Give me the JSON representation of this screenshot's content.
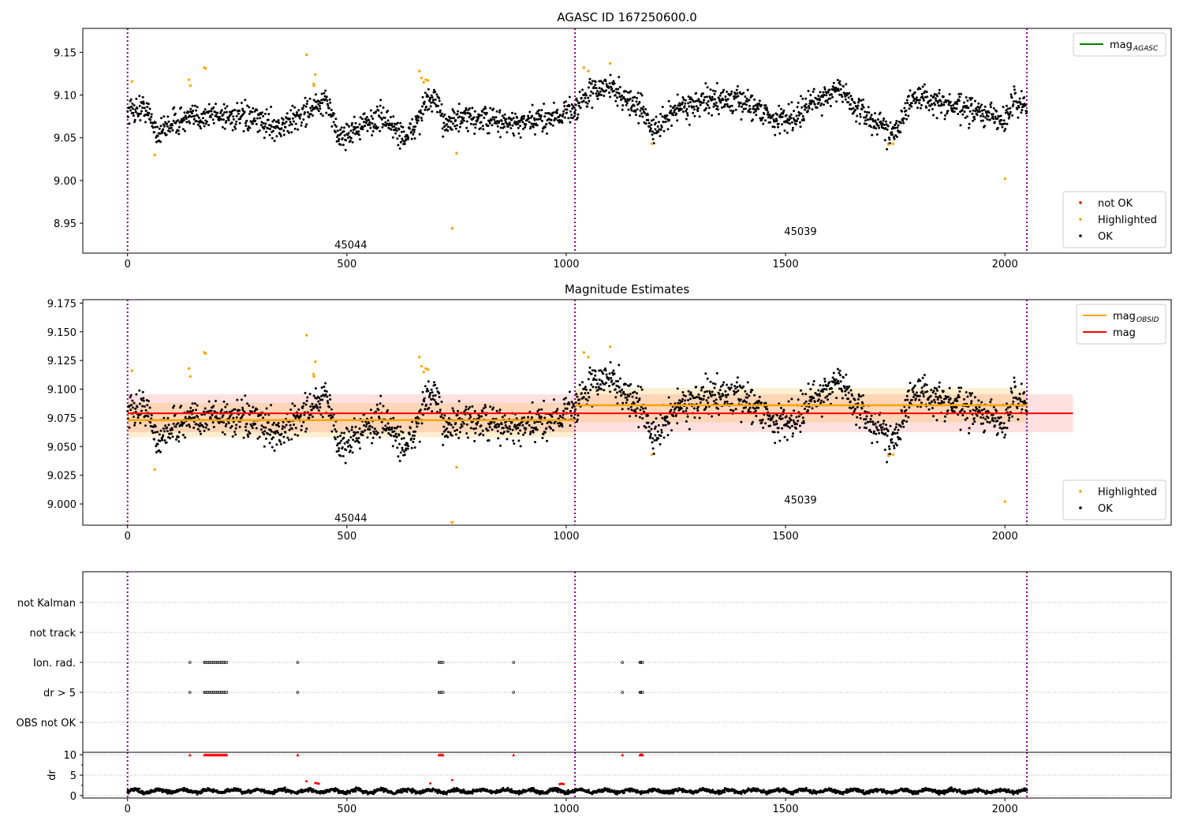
{
  "chart_data": [
    {
      "type": "scatter",
      "title": "AGASC ID 167250600.0",
      "xlim": [
        -102,
        2379
      ],
      "ylim": [
        8.915,
        9.178
      ],
      "xticks": [
        "0",
        "500",
        "1000",
        "1500",
        "2000"
      ],
      "yticks": [
        "8.95",
        "9.00",
        "9.05",
        "9.10",
        "9.15"
      ],
      "legend_upper": {
        "position": "upper-right",
        "entries": [
          {
            "label": "mag",
            "sub": "AGASC",
            "color": "#008000"
          }
        ]
      },
      "legend_lower": {
        "position": "lower-right",
        "entries": [
          {
            "label": "not OK",
            "color": "#ff0000"
          },
          {
            "label": "Highlighted",
            "color": "#ffa500"
          },
          {
            "label": "OK",
            "color": "#000000"
          }
        ]
      },
      "obsid_labels": [
        {
          "text": "45044",
          "x": 509,
          "y": 8.925
        },
        {
          "text": "45039",
          "x": 1534,
          "y": 8.941
        }
      ],
      "obsid_boundaries": [
        0,
        1020,
        2050
      ]
    },
    {
      "type": "scatter",
      "title": "Magnitude Estimates",
      "xlim": [
        -102,
        2379
      ],
      "ylim": [
        8.9815,
        9.178
      ],
      "xticks": [
        "0",
        "500",
        "1000",
        "1500",
        "2000"
      ],
      "yticks": [
        "9.000",
        "9.025",
        "9.050",
        "9.075",
        "9.100",
        "9.125",
        "9.150",
        "9.175"
      ],
      "legend_upper": {
        "position": "upper-right",
        "entries": [
          {
            "label": "mag",
            "sub": "OBSID",
            "color": "#ffa500"
          },
          {
            "label": "mag",
            "color": "#ff0000"
          }
        ]
      },
      "legend_lower": {
        "position": "lower-right",
        "entries": [
          {
            "label": "Highlighted",
            "color": "#ffa500"
          },
          {
            "label": "OK",
            "color": "#000000"
          }
        ]
      },
      "obsid_labels": [
        {
          "text": "45044",
          "x": 509,
          "y": 8.988
        },
        {
          "text": "45039",
          "x": 1534,
          "y": 9.004
        }
      ],
      "obsid_means": [
        {
          "x0": 0,
          "x1": 1020,
          "mean": 9.073,
          "std": 0.015
        },
        {
          "x0": 1020,
          "x1": 2050,
          "mean": 9.086,
          "std": 0.015
        }
      ],
      "overall_mean": {
        "x0": 0,
        "x1": 2155,
        "mean": 9.079,
        "std": 0.0165
      }
    },
    {
      "type": "scatter",
      "categories": [
        "OBS not OK",
        "dr > 5",
        "Ion. rad.",
        "not track",
        "not Kalman"
      ],
      "flag_x": [
        142,
        175,
        178,
        181,
        184,
        187,
        190,
        193,
        196,
        199,
        202,
        205,
        208,
        211,
        214,
        217,
        220,
        223,
        226,
        388,
        710,
        713,
        716,
        719,
        880,
        1128,
        1168,
        1170,
        1172,
        1174
      ],
      "flag_categories": [
        "dr > 5",
        "Ion. rad."
      ]
    },
    {
      "type": "scatter",
      "ylabel": "dr",
      "ylim": [
        -0.6,
        10.6
      ],
      "yticks": [
        "0",
        "5",
        "10"
      ],
      "xticks": [
        "0",
        "500",
        "1000",
        "1500",
        "2000"
      ],
      "clipped_value": 10,
      "red_points": [
        [
          408,
          3.5
        ],
        [
          428,
          3.1
        ],
        [
          432,
          3.0
        ],
        [
          436,
          2.9
        ],
        [
          690,
          3.0
        ],
        [
          740,
          3.8
        ],
        [
          985,
          2.8
        ],
        [
          988,
          2.9
        ],
        [
          991,
          2.9
        ],
        [
          994,
          2.8
        ]
      ]
    }
  ],
  "series_model": {
    "x_range": [
      0,
      2050
    ],
    "mag_trend": [
      [
        0,
        9.082
      ],
      [
        40,
        9.085
      ],
      [
        70,
        9.055
      ],
      [
        100,
        9.068
      ],
      [
        200,
        9.078
      ],
      [
        300,
        9.07
      ],
      [
        350,
        9.062
      ],
      [
        420,
        9.085
      ],
      [
        460,
        9.09
      ],
      [
        480,
        9.05
      ],
      [
        540,
        9.065
      ],
      [
        580,
        9.075
      ],
      [
        620,
        9.055
      ],
      [
        640,
        9.05
      ],
      [
        680,
        9.09
      ],
      [
        700,
        9.095
      ],
      [
        720,
        9.07
      ],
      [
        800,
        9.072
      ],
      [
        900,
        9.065
      ],
      [
        1000,
        9.08
      ],
      [
        1020,
        9.085
      ],
      [
        1060,
        9.105
      ],
      [
        1100,
        9.11
      ],
      [
        1150,
        9.09
      ],
      [
        1180,
        9.08
      ],
      [
        1200,
        9.055
      ],
      [
        1250,
        9.085
      ],
      [
        1350,
        9.095
      ],
      [
        1420,
        9.09
      ],
      [
        1480,
        9.07
      ],
      [
        1520,
        9.075
      ],
      [
        1560,
        9.09
      ],
      [
        1620,
        9.108
      ],
      [
        1660,
        9.085
      ],
      [
        1700,
        9.07
      ],
      [
        1740,
        9.055
      ],
      [
        1760,
        9.07
      ],
      [
        1800,
        9.1
      ],
      [
        1850,
        9.09
      ],
      [
        1950,
        9.078
      ],
      [
        2000,
        9.07
      ],
      [
        2020,
        9.095
      ],
      [
        2050,
        9.085
      ]
    ],
    "mag_noise": 0.011,
    "dr_mean": 1.1,
    "dr_noise": 0.6,
    "highlighted": [
      [
        10,
        9.116
      ],
      [
        62,
        9.03
      ],
      [
        140,
        9.118
      ],
      [
        143,
        9.111
      ],
      [
        175,
        9.132
      ],
      [
        178,
        9.131
      ],
      [
        408,
        9.147
      ],
      [
        424,
        9.113
      ],
      [
        425,
        9.111
      ],
      [
        428,
        9.124
      ],
      [
        665,
        9.128
      ],
      [
        670,
        9.12
      ],
      [
        675,
        9.115
      ],
      [
        680,
        9.118
      ],
      [
        685,
        9.117
      ],
      [
        740,
        8.944
      ],
      [
        750,
        9.032
      ],
      [
        1040,
        9.132
      ],
      [
        1050,
        9.128
      ],
      [
        1100,
        9.137
      ],
      [
        1195,
        9.043
      ],
      [
        1735,
        9.042
      ],
      [
        1745,
        9.043
      ],
      [
        2000,
        9.002
      ]
    ]
  }
}
